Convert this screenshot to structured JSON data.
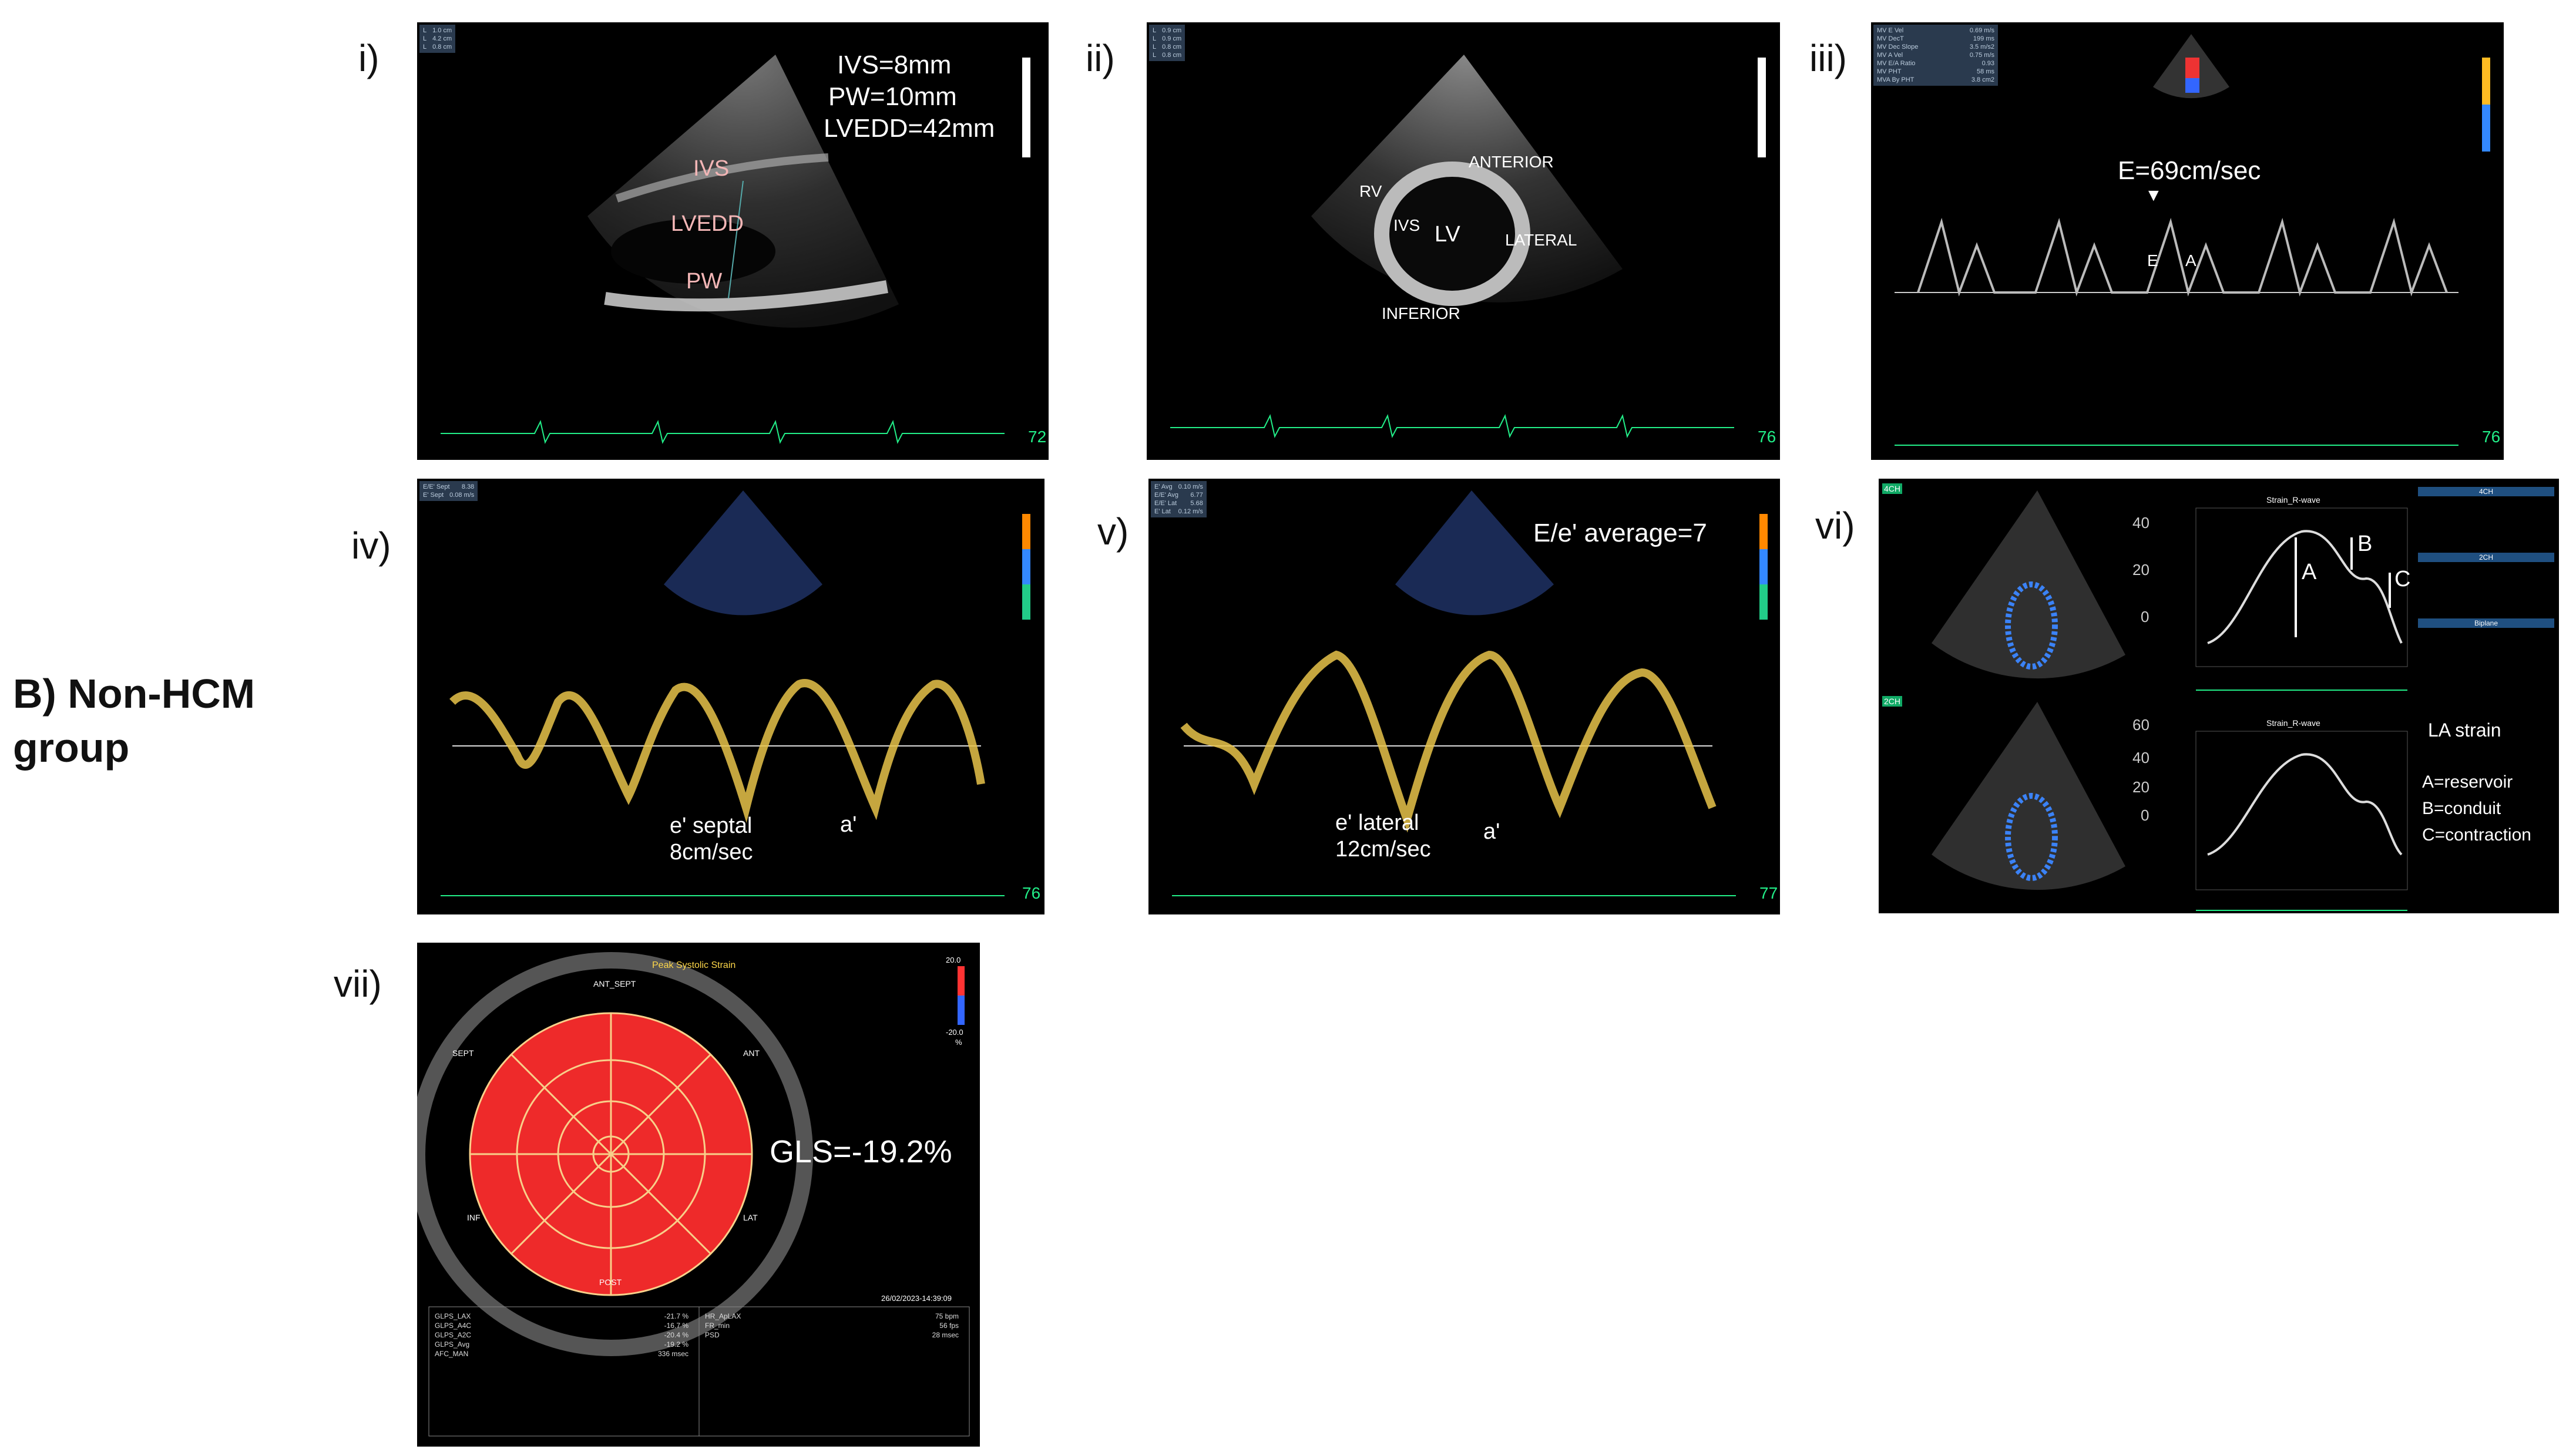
{
  "group_label": [
    "B) Non-HCM",
    "group"
  ],
  "panels": {
    "p1": {
      "label": "i)",
      "measurements": [
        "IVS=8mm",
        "PW=10mm",
        "LVEDD=42mm"
      ],
      "anatomy": [
        "IVS",
        "LVEDD",
        "PW"
      ],
      "readout": [
        [
          "L",
          "1.0 cm"
        ],
        [
          "L",
          "4.2 cm"
        ],
        [
          "L",
          "0.8 cm"
        ]
      ],
      "hr": "72"
    },
    "p2": {
      "label": "ii)",
      "anatomy": [
        "RV",
        "IVS",
        "LV",
        "ANTERIOR",
        "LATERAL",
        "INFERIOR"
      ],
      "readout": [
        [
          "L",
          "0.9 cm"
        ],
        [
          "L",
          "0.9 cm"
        ],
        [
          "L",
          "0.8 cm"
        ],
        [
          "L",
          "0.8 cm"
        ]
      ],
      "hr": "76"
    },
    "p3": {
      "label": "iii)",
      "measurement": "E=69cm/sec",
      "wave_labels": [
        "E",
        "A"
      ],
      "readout": [
        [
          "MV E Vel",
          "0.69 m/s"
        ],
        [
          "MV DecT",
          "199 ms"
        ],
        [
          "MV Dec Slope",
          "3.5 m/s2"
        ],
        [
          "MV A Vel",
          "0.75 m/s"
        ],
        [
          "MV E/A Ratio",
          "0.93"
        ],
        [
          "MV PHT",
          "58 ms"
        ],
        [
          "MVA By PHT",
          "3.8 cm2"
        ]
      ],
      "hr": "76"
    },
    "p4": {
      "label": "iv)",
      "measurement": [
        "e' septal",
        "8cm/sec"
      ],
      "wave_label": "a'",
      "readout": [
        [
          "E/E' Sept",
          "8.38"
        ],
        [
          "E' Sept",
          "0.08 m/s"
        ]
      ],
      "hr": "76"
    },
    "p5": {
      "label": "v)",
      "measurement": "E/e' average=7",
      "annotation": [
        "e' lateral",
        "12cm/sec"
      ],
      "wave_label": "a'",
      "readout": [
        [
          "E' Avg",
          "0.10 m/s"
        ],
        [
          "E/E' Avg",
          "6.77"
        ],
        [
          "E/E' Lat",
          "5.68"
        ],
        [
          "E' Lat",
          "0.12 m/s"
        ]
      ],
      "hr": "77"
    },
    "p6": {
      "label": "vi)",
      "title": "LA strain",
      "legend": [
        "A=reservoir",
        "B=conduit",
        "C=contraction"
      ],
      "curve_labels": [
        "A",
        "B",
        "C"
      ],
      "axis_upper": [
        "40",
        "20",
        "0"
      ],
      "axis_lower": [
        "60",
        "40",
        "20",
        "0"
      ],
      "view_tags": [
        "4CH",
        "2CH"
      ],
      "table_headers": [
        "4CH",
        "2CH",
        "Biplane"
      ],
      "chart_titles": [
        "Strain_R-wave",
        "Strain_R-wave"
      ]
    },
    "p7": {
      "label": "vii)",
      "title": "Peak Systolic Strain",
      "measurement": "GLS=-19.2%",
      "segments": [
        "ANT_SEPT",
        "ANT",
        "LAT",
        "POST",
        "INF",
        "SEPT"
      ],
      "scale": [
        "20.0",
        "-20.0",
        "%"
      ],
      "timestamp": "26/02/2023-14:39:09",
      "table_left": [
        [
          "GLPS_LAX",
          "-21.7 %"
        ],
        [
          "GLPS_A4C",
          "-16.7 %"
        ],
        [
          "GLPS_A2C",
          "-20.4 %"
        ],
        [
          "GLPS_Avg",
          "-19.2 %"
        ],
        [
          "AFC_MAN",
          "336 msec"
        ]
      ],
      "table_right": [
        [
          "HR_ApLAX",
          "75 bpm"
        ],
        [
          "FR_min",
          "56 fps"
        ],
        [
          "PSD",
          "28 msec"
        ]
      ]
    }
  }
}
